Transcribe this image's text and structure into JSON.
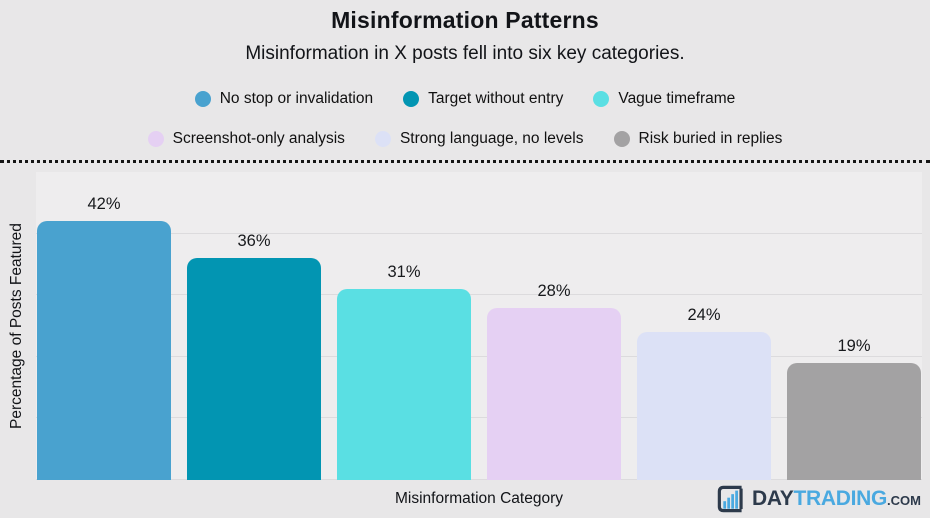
{
  "header": {
    "title": "Misinformation Patterns",
    "subtitle": "Misinformation in X posts fell into six key categories."
  },
  "chart_data": {
    "type": "bar",
    "title": "Misinformation Patterns",
    "subtitle": "Misinformation in X posts fell into six key categories.",
    "categories": [
      "No stop or invalidation",
      "Target without entry",
      "Vague timeframe",
      "Screenshot-only analysis",
      "Strong language, no levels",
      "Risk buried in replies"
    ],
    "values": [
      42,
      36,
      31,
      28,
      24,
      19
    ],
    "value_labels": [
      "42%",
      "36%",
      "31%",
      "28%",
      "24%",
      "19%"
    ],
    "colors": [
      "#49a2cf",
      "#0295b2",
      "#5adfe3",
      "#e5d0f3",
      "#dce1f6",
      "#a3a2a3"
    ],
    "xlabel": "Misinformation Category",
    "ylabel": "Percentage of Posts Featured",
    "ylim": [
      0,
      50
    ],
    "grid": true,
    "gridline_step": 10,
    "legend_position": "top",
    "legend_rows": [
      3,
      3
    ]
  },
  "logo": {
    "day": "DAY",
    "trading": "TRADING",
    "com": ".COM",
    "navy": "#2d3a4b",
    "blue": "#4aa9e0"
  }
}
